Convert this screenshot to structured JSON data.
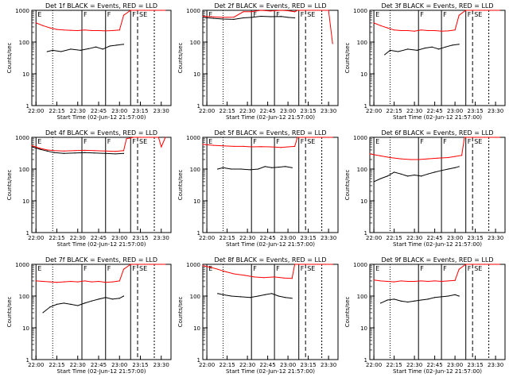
{
  "figure": {
    "time_axis_label": "Start Time (02-Jun-12 21:57:00)",
    "y_axis_label": "Counts/sec"
  },
  "chart_data": [
    {
      "type": "line",
      "title": "Det 1f BLACK = Events, RED = LLD",
      "ylabel": "Counts/sec",
      "xlabel": "Start Time (02-Jun-12 21:57:00)",
      "y_scale": "log",
      "ylim": [
        1,
        1000
      ],
      "x_tick_labels": [
        "22:00",
        "22:15",
        "22:30",
        "22:45",
        "23:00",
        "23:15",
        "23:30"
      ],
      "y_tick_labels": [
        "1",
        "10",
        "100",
        "1000"
      ],
      "region_labels": [
        "E",
        "F",
        "F",
        "F",
        "SE"
      ],
      "series": [
        {
          "color": "#ff0000",
          "x": [
            "22:00",
            "22:05",
            "22:10",
            "22:15",
            "22:20",
            "22:25",
            "22:30",
            "22:35",
            "22:40",
            "22:45",
            "22:50",
            "22:55",
            "23:00",
            "23:03",
            "23:08",
            "23:12",
            "23:18",
            "23:22",
            "23:26",
            "23:30",
            "23:33"
          ],
          "y": [
            400,
            330,
            280,
            250,
            240,
            235,
            230,
            240,
            230,
            230,
            225,
            230,
            240,
            700,
            1000,
            1000,
            1000,
            1000,
            1000,
            1000,
            1000
          ]
        },
        {
          "color": "#000000",
          "x": [
            "22:08",
            "22:12",
            "22:18",
            "22:25",
            "22:32",
            "22:38",
            "22:43",
            "22:48",
            "22:53",
            "22:58",
            "23:03"
          ],
          "y": [
            50,
            55,
            50,
            60,
            55,
            62,
            70,
            60,
            75,
            80,
            85
          ]
        }
      ]
    },
    {
      "type": "line",
      "title": "Det 2f BLACK = Events, RED = LLD",
      "ylabel": "Counts/sec",
      "xlabel": "Start Time (02-Jun-12 21:57:00)",
      "y_scale": "log",
      "ylim": [
        1,
        1000
      ],
      "x_tick_labels": [
        "22:00",
        "22:15",
        "22:30",
        "22:45",
        "23:00",
        "23:15",
        "23:30"
      ],
      "y_tick_labels": [
        "1",
        "10",
        "100",
        "1000"
      ],
      "region_labels": [
        "E",
        "F",
        "F",
        "F",
        "SE"
      ],
      "series": [
        {
          "color": "#ff0000",
          "x": [
            "21:57",
            "22:05",
            "22:12",
            "22:20",
            "22:27",
            "22:33",
            "22:40",
            "22:47",
            "22:55",
            "23:00",
            "23:05",
            "23:07",
            "23:10",
            "23:15",
            "23:22",
            "23:30",
            "23:33"
          ],
          "y": [
            650,
            620,
            600,
            610,
            900,
            900,
            1000,
            950,
            1000,
            970,
            900,
            1000,
            1000,
            1000,
            1000,
            1000,
            90
          ]
        },
        {
          "color": "#000000",
          "x": [
            "21:57",
            "22:05",
            "22:12",
            "22:20",
            "22:27",
            "22:33",
            "22:40",
            "22:47",
            "22:55",
            "23:00",
            "23:05"
          ],
          "y": [
            600,
            560,
            530,
            520,
            580,
            600,
            650,
            630,
            640,
            600,
            580
          ]
        }
      ]
    },
    {
      "type": "line",
      "title": "Det 3f BLACK = Events, RED = LLD",
      "ylabel": "Counts/sec",
      "xlabel": "Start Time (02-Jun-12 21:57:00)",
      "y_scale": "log",
      "ylim": [
        1,
        1000
      ],
      "x_tick_labels": [
        "22:00",
        "22:15",
        "22:30",
        "22:45",
        "23:00",
        "23:15",
        "23:30"
      ],
      "y_tick_labels": [
        "1",
        "10",
        "100",
        "1000"
      ],
      "region_labels": [
        "E",
        "F",
        "F",
        "F",
        "SE"
      ],
      "series": [
        {
          "color": "#ff0000",
          "x": [
            "22:00",
            "22:05",
            "22:10",
            "22:15",
            "22:20",
            "22:25",
            "22:30",
            "22:35",
            "22:40",
            "22:45",
            "22:50",
            "22:55",
            "23:00",
            "23:03",
            "23:08",
            "23:12",
            "23:18",
            "23:22",
            "23:26",
            "23:30",
            "23:33"
          ],
          "y": [
            400,
            330,
            280,
            240,
            230,
            230,
            220,
            240,
            230,
            230,
            220,
            225,
            240,
            700,
            1000,
            1000,
            1000,
            1000,
            1000,
            1000,
            1000
          ]
        },
        {
          "color": "#000000",
          "x": [
            "22:08",
            "22:12",
            "22:18",
            "22:25",
            "22:32",
            "22:38",
            "22:43",
            "22:48",
            "22:53",
            "22:58",
            "23:03"
          ],
          "y": [
            40,
            55,
            50,
            60,
            55,
            65,
            70,
            60,
            70,
            80,
            85
          ]
        }
      ]
    },
    {
      "type": "line",
      "title": "Det 4f BLACK = Events, RED = LLD",
      "ylabel": "Counts/sec",
      "xlabel": "Start Time (02-Jun-12 21:57:00)",
      "y_scale": "log",
      "ylim": [
        1,
        1000
      ],
      "x_tick_labels": [
        "22:00",
        "22:15",
        "22:30",
        "22:45",
        "23:00",
        "23:15",
        "23:30"
      ],
      "y_tick_labels": [
        "1",
        "10",
        "100",
        "1000"
      ],
      "region_labels": [
        "E",
        "F",
        "F",
        "F",
        "SE"
      ],
      "series": [
        {
          "color": "#ff0000",
          "x": [
            "21:57",
            "22:03",
            "22:08",
            "22:13",
            "22:20",
            "22:28",
            "22:35",
            "22:42",
            "22:50",
            "22:57",
            "23:03",
            "23:05",
            "23:10",
            "23:15",
            "23:22",
            "23:28",
            "23:30",
            "23:33"
          ],
          "y": [
            550,
            450,
            400,
            380,
            370,
            380,
            390,
            380,
            370,
            360,
            380,
            900,
            1000,
            1000,
            1000,
            1000,
            500,
            1000
          ]
        },
        {
          "color": "#000000",
          "x": [
            "21:57",
            "22:03",
            "22:08",
            "22:13",
            "22:20",
            "22:28",
            "22:35",
            "22:42",
            "22:50",
            "22:57",
            "23:03"
          ],
          "y": [
            500,
            420,
            370,
            330,
            310,
            320,
            330,
            320,
            310,
            300,
            310
          ]
        }
      ]
    },
    {
      "type": "line",
      "title": "Det 5f BLACK = Events, RED = LLD",
      "ylabel": "Counts/sec",
      "xlabel": "Start Time (02-Jun-12 21:57:00)",
      "y_scale": "log",
      "ylim": [
        1,
        1000
      ],
      "x_tick_labels": [
        "22:00",
        "22:15",
        "22:30",
        "22:45",
        "23:00",
        "23:15",
        "23:30"
      ],
      "y_tick_labels": [
        "1",
        "10",
        "100",
        "1000"
      ],
      "region_labels": [
        "E",
        "F",
        "F",
        "F",
        "SE"
      ],
      "series": [
        {
          "color": "#ff0000",
          "x": [
            "21:57",
            "22:05",
            "22:12",
            "22:20",
            "22:27",
            "22:33",
            "22:40",
            "22:47",
            "22:55",
            "23:00",
            "23:05",
            "23:07",
            "23:10",
            "23:15",
            "23:22",
            "23:30",
            "23:33"
          ],
          "y": [
            600,
            560,
            540,
            520,
            520,
            500,
            510,
            500,
            480,
            500,
            520,
            1000,
            1000,
            1000,
            1000,
            1000,
            1000
          ]
        },
        {
          "color": "#000000",
          "x": [
            "22:08",
            "22:12",
            "22:18",
            "22:25",
            "22:32",
            "22:38",
            "22:43",
            "22:48",
            "22:53",
            "22:58",
            "23:03"
          ],
          "y": [
            100,
            110,
            100,
            100,
            95,
            100,
            120,
            110,
            115,
            120,
            110
          ]
        }
      ]
    },
    {
      "type": "line",
      "title": "Det 6f BLACK = Events, RED = LLD",
      "ylabel": "Counts/sec",
      "xlabel": "Start Time (02-Jun-12 21:57:00)",
      "y_scale": "log",
      "ylim": [
        1,
        1000
      ],
      "x_tick_labels": [
        "22:00",
        "22:15",
        "22:30",
        "22:45",
        "23:00",
        "23:15",
        "23:30"
      ],
      "y_tick_labels": [
        "1",
        "10",
        "100",
        "1000"
      ],
      "region_labels": [
        "E",
        "F",
        "F",
        "F",
        "SE"
      ],
      "series": [
        {
          "color": "#ff0000",
          "x": [
            "21:57",
            "22:05",
            "22:12",
            "22:20",
            "22:27",
            "22:33",
            "22:40",
            "22:47",
            "22:55",
            "23:00",
            "23:05",
            "23:07",
            "23:10",
            "23:15",
            "23:22",
            "23:30",
            "23:33"
          ],
          "y": [
            300,
            260,
            230,
            210,
            200,
            200,
            210,
            220,
            230,
            250,
            270,
            1000,
            1000,
            1000,
            1000,
            1000,
            1000
          ]
        },
        {
          "color": "#000000",
          "x": [
            "22:00",
            "22:05",
            "22:10",
            "22:15",
            "22:20",
            "22:25",
            "22:30",
            "22:35",
            "22:40",
            "22:45",
            "22:50",
            "22:55",
            "23:00",
            "23:03"
          ],
          "y": [
            40,
            50,
            60,
            80,
            70,
            60,
            65,
            60,
            70,
            80,
            90,
            100,
            110,
            120
          ]
        }
      ]
    },
    {
      "type": "line",
      "title": "Det 7f BLACK = Events, RED = LLD",
      "ylabel": "Counts/sec",
      "xlabel": "Start Time (02-Jun-12 21:57:00)",
      "y_scale": "log",
      "ylim": [
        1,
        1000
      ],
      "x_tick_labels": [
        "22:00",
        "22:15",
        "22:30",
        "22:45",
        "23:00",
        "23:15",
        "23:30"
      ],
      "y_tick_labels": [
        "1",
        "10",
        "100",
        "1000"
      ],
      "region_labels": [
        "E",
        "F",
        "F",
        "F",
        "SE"
      ],
      "series": [
        {
          "color": "#ff0000",
          "x": [
            "22:00",
            "22:05",
            "22:10",
            "22:15",
            "22:20",
            "22:25",
            "22:30",
            "22:35",
            "22:40",
            "22:45",
            "22:50",
            "22:55",
            "23:00",
            "23:03",
            "23:08",
            "23:12",
            "23:18",
            "23:22",
            "23:26",
            "23:30",
            "23:33"
          ],
          "y": [
            300,
            290,
            280,
            270,
            280,
            290,
            280,
            300,
            280,
            290,
            270,
            280,
            300,
            700,
            1000,
            1000,
            1000,
            1000,
            1000,
            1000,
            1000
          ]
        },
        {
          "color": "#000000",
          "x": [
            "22:05",
            "22:10",
            "22:15",
            "22:20",
            "22:25",
            "22:30",
            "22:35",
            "22:40",
            "22:45",
            "22:50",
            "22:55",
            "23:00",
            "23:03"
          ],
          "y": [
            30,
            45,
            55,
            60,
            55,
            50,
            60,
            70,
            80,
            90,
            80,
            85,
            100
          ]
        }
      ]
    },
    {
      "type": "line",
      "title": "Det 8f BLACK = Events, RED = LLD",
      "ylabel": "Counts/sec",
      "xlabel": "Start Time (02-Jun-12 21:57:00)",
      "y_scale": "log",
      "ylim": [
        1,
        1000
      ],
      "x_tick_labels": [
        "22:00",
        "22:15",
        "22:30",
        "22:45",
        "23:00",
        "23:15",
        "23:30"
      ],
      "y_tick_labels": [
        "1",
        "10",
        "100",
        "1000"
      ],
      "region_labels": [
        "E",
        "F",
        "F",
        "F",
        "SE"
      ],
      "series": [
        {
          "color": "#ff0000",
          "x": [
            "21:57",
            "22:03",
            "22:08",
            "22:13",
            "22:20",
            "22:28",
            "22:35",
            "22:42",
            "22:50",
            "22:57",
            "23:03",
            "23:05",
            "23:10",
            "23:15",
            "23:22",
            "23:28",
            "23:33"
          ],
          "y": [
            900,
            800,
            700,
            600,
            500,
            450,
            400,
            380,
            400,
            370,
            360,
            1000,
            1000,
            1000,
            1000,
            1000,
            1000
          ]
        },
        {
          "color": "#000000",
          "x": [
            "22:08",
            "22:12",
            "22:18",
            "22:25",
            "22:32",
            "22:38",
            "22:43",
            "22:48",
            "22:53",
            "22:58",
            "23:03"
          ],
          "y": [
            120,
            110,
            100,
            95,
            90,
            100,
            110,
            120,
            100,
            90,
            85
          ]
        }
      ]
    },
    {
      "type": "line",
      "title": "Det 9f BLACK = Events, RED = LLD",
      "ylabel": "Counts/sec",
      "xlabel": "Start Time (02-Jun-12 21:57:00)",
      "y_scale": "log",
      "ylim": [
        1,
        1000
      ],
      "x_tick_labels": [
        "22:00",
        "22:15",
        "22:30",
        "22:45",
        "23:00",
        "23:15",
        "23:30"
      ],
      "y_tick_labels": [
        "1",
        "10",
        "100",
        "1000"
      ],
      "region_labels": [
        "E",
        "F",
        "F",
        "F",
        "SE"
      ],
      "series": [
        {
          "color": "#ff0000",
          "x": [
            "22:00",
            "22:05",
            "22:10",
            "22:15",
            "22:20",
            "22:25",
            "22:30",
            "22:35",
            "22:40",
            "22:45",
            "22:50",
            "22:55",
            "23:00",
            "23:03",
            "23:08",
            "23:12",
            "23:18",
            "23:22",
            "23:26",
            "23:30",
            "23:33"
          ],
          "y": [
            320,
            300,
            290,
            280,
            300,
            290,
            290,
            300,
            290,
            300,
            290,
            300,
            310,
            700,
            1000,
            1000,
            1000,
            1000,
            1000,
            1000,
            1000
          ]
        },
        {
          "color": "#000000",
          "x": [
            "22:05",
            "22:10",
            "22:15",
            "22:20",
            "22:25",
            "22:30",
            "22:35",
            "22:40",
            "22:45",
            "22:50",
            "22:55",
            "23:00",
            "23:03"
          ],
          "y": [
            60,
            75,
            80,
            70,
            65,
            70,
            75,
            80,
            90,
            95,
            100,
            110,
            100
          ]
        }
      ]
    }
  ]
}
